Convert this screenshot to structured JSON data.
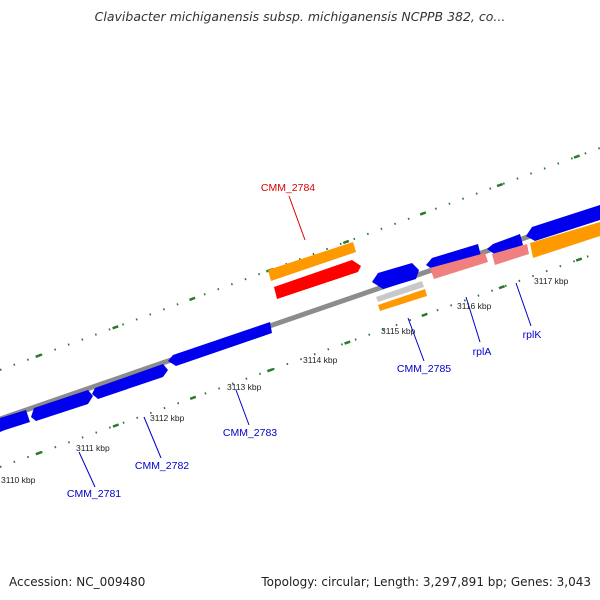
{
  "title": "Clavibacter michiganensis subsp. michiganensis NCPPB 382, co...",
  "footer": {
    "accession": "Accession: NC_009480",
    "summary": "Topology: circular; Length: 3,297,891 bp; Genes: 3,043"
  },
  "ticks": [
    "3110 kbp",
    "3111 kbp",
    "3112 kbp",
    "3113 kbp",
    "3114 kbp",
    "3115 kbp",
    "3116 kbp",
    "3117 kbp"
  ],
  "gene_labels": [
    "CMM_2784",
    "CMM_2781",
    "CMM_2782",
    "CMM_2783",
    "CMM_2785",
    "rplA",
    "rplK"
  ],
  "colors": {
    "backbone": "#8c8c8c",
    "cds_forward": "#0000ee",
    "cds_reverse": "#0000ee",
    "gene_orange": "#ff9900",
    "gene_red": "#ff0000",
    "rna_pink": "#f08080",
    "unknown_gray": "#c8c8c8",
    "tick_green": "#2a7a2a",
    "label_blue": "#0000cc",
    "label_red": "#dd0000"
  }
}
